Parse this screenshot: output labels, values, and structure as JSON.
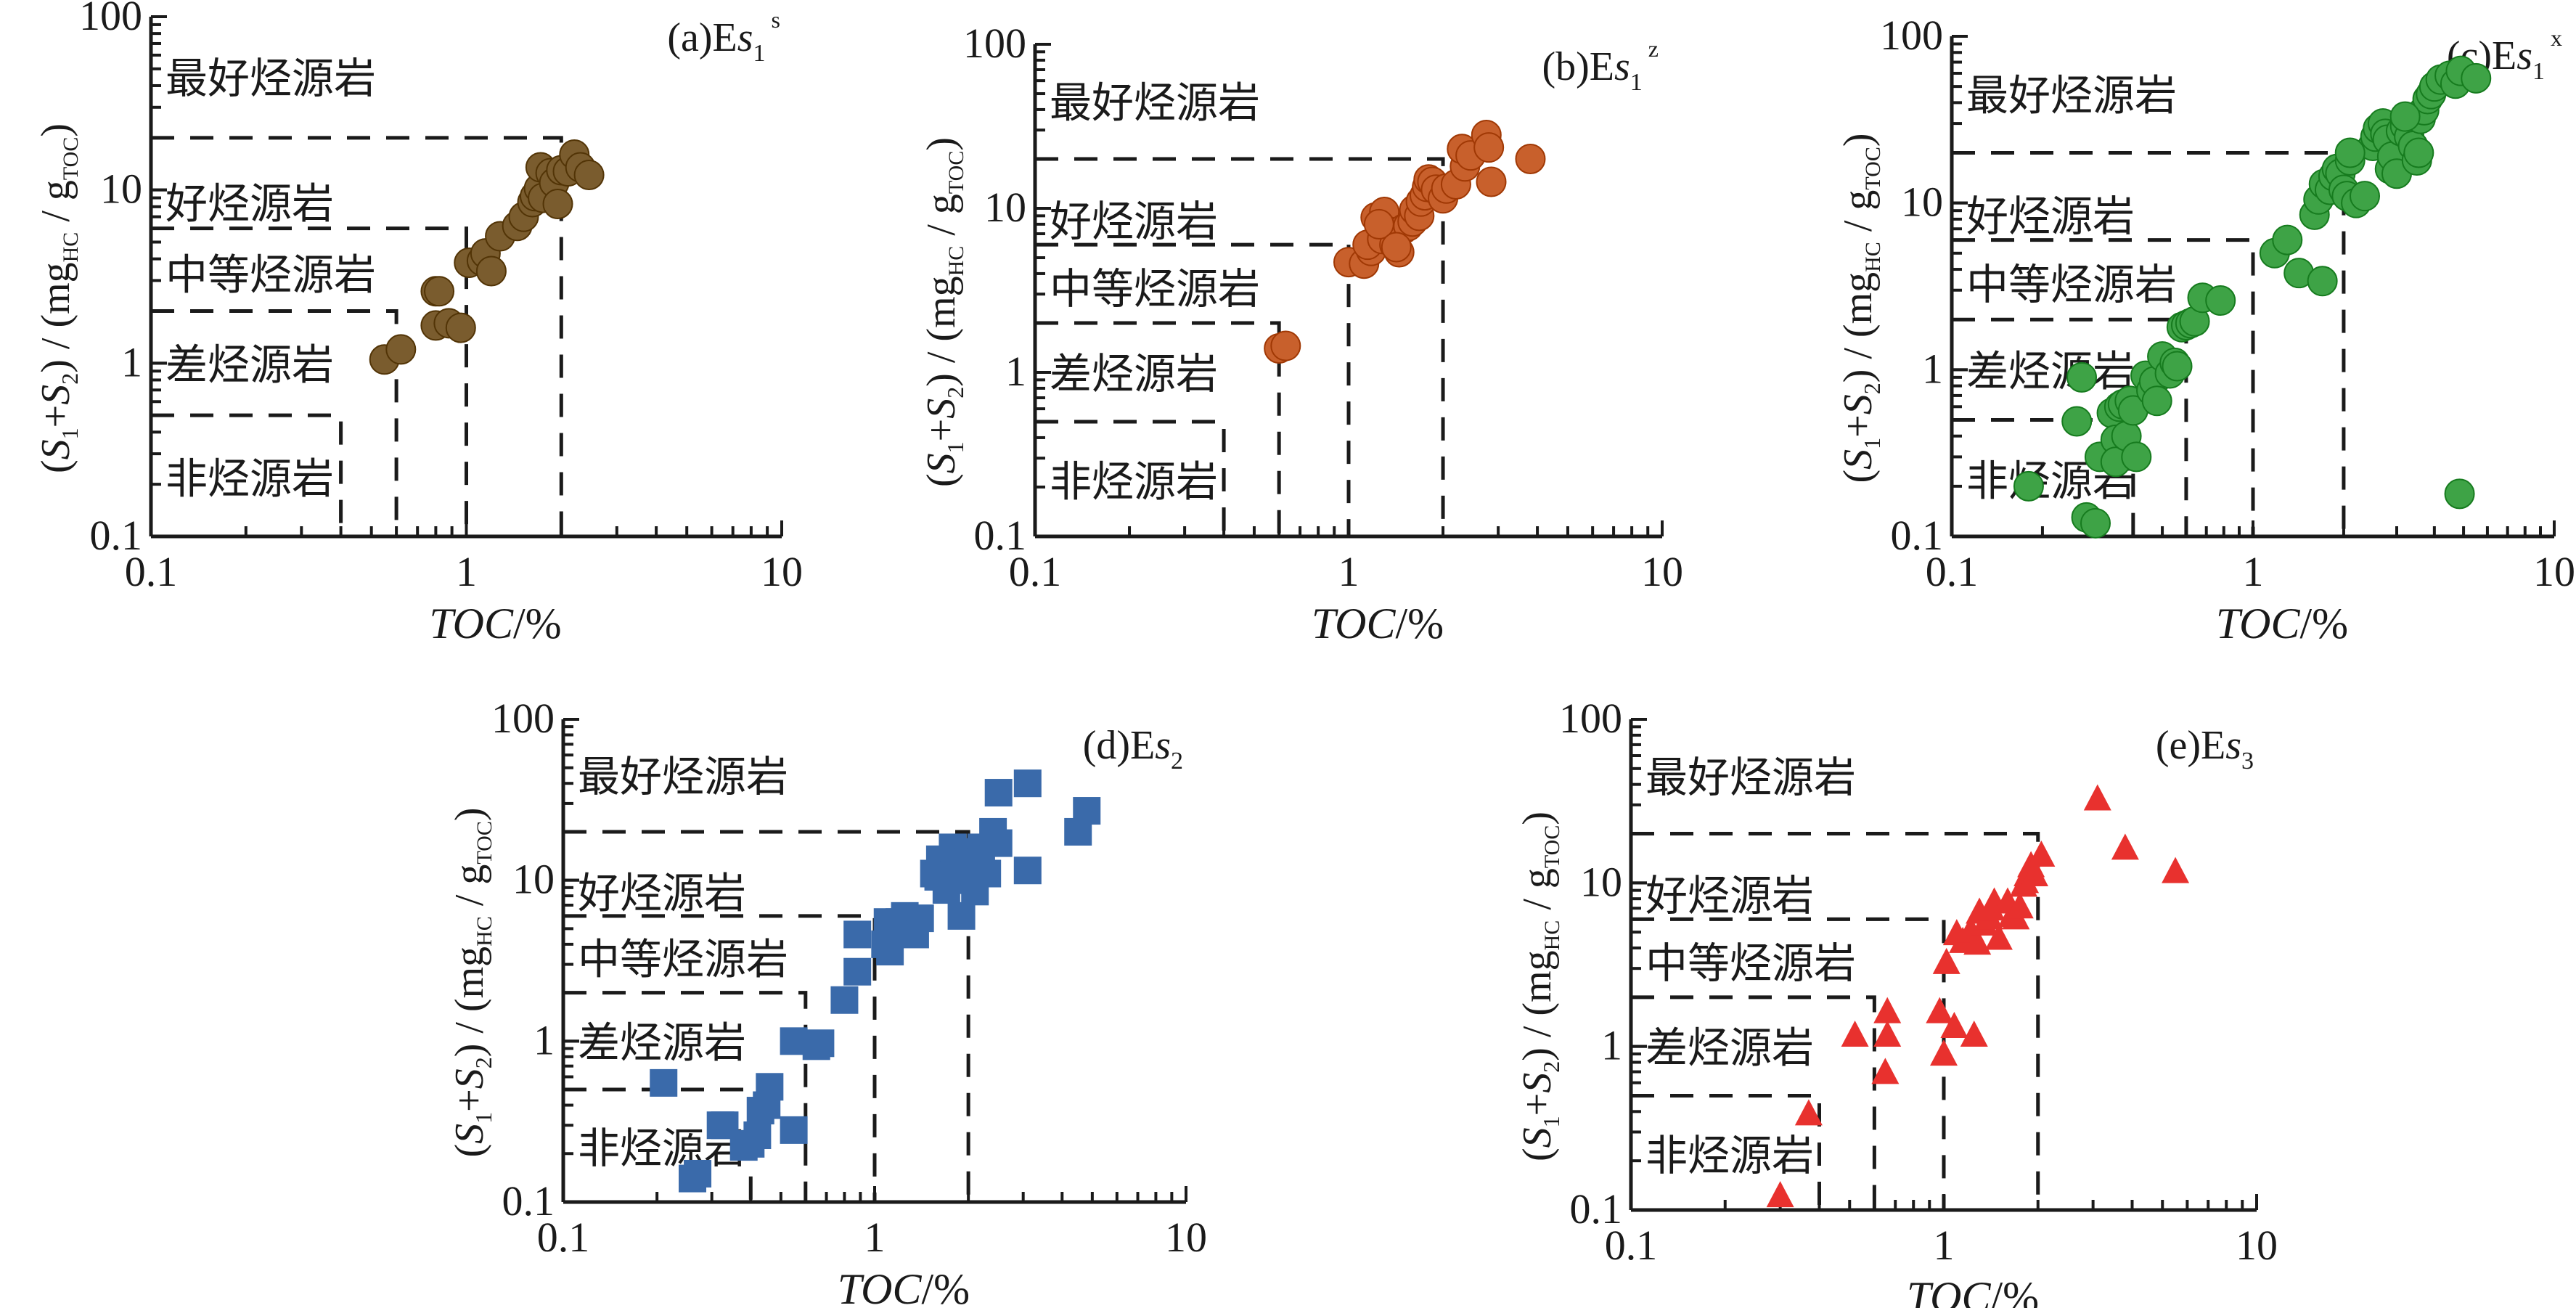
{
  "chart_data": [
    {
      "id": "a",
      "type": "scatter",
      "title": "(a)Es1s",
      "title_parts": {
        "prefix": "(a)E",
        "italic": "s",
        "sub": "1",
        "sup": "s"
      },
      "xlabel": "TOC/%",
      "ylabel": "(S1+S2)/(mgHC/gTOC)",
      "xscale": "log",
      "yscale": "log",
      "xlim": [
        0.1,
        10
      ],
      "ylim": [
        0.1,
        100
      ],
      "xticks": [
        "0.1",
        "1",
        "10"
      ],
      "yticks": [
        "0.1",
        "1",
        "10",
        "100"
      ],
      "marker": "circle",
      "color": "#7a5c2e",
      "x": [
        0.55,
        0.62,
        0.8,
        0.82,
        0.8,
        0.88,
        0.96,
        1.02,
        1.12,
        1.15,
        1.2,
        1.28,
        1.45,
        1.52,
        1.62,
        1.65,
        1.7,
        1.75,
        1.72,
        1.85,
        1.9,
        1.95,
        2.0,
        2.1,
        2.2,
        2.3,
        2.45
      ],
      "y": [
        1.05,
        1.2,
        2.6,
        2.6,
        1.65,
        1.7,
        1.6,
        3.8,
        3.9,
        4.3,
        3.4,
        5.4,
        6.2,
        7.0,
        8.5,
        9.2,
        10.2,
        9.0,
        13.5,
        12.5,
        11.0,
        8.3,
        13.0,
        12.8,
        16.0,
        13.5,
        12.2
      ]
    },
    {
      "id": "b",
      "type": "scatter",
      "title": "(b)Es1z",
      "title_parts": {
        "prefix": "(b)E",
        "italic": "s",
        "sub": "1",
        "sup": "z"
      },
      "xlabel": "TOC/%",
      "ylabel": "(S1+S2)/(mgHC/gTOC)",
      "xscale": "log",
      "yscale": "log",
      "xlim": [
        0.1,
        10
      ],
      "ylim": [
        0.1,
        100
      ],
      "xticks": [
        "0.1",
        "1",
        "10"
      ],
      "yticks": [
        "0.1",
        "1",
        "10",
        "100"
      ],
      "marker": "circle",
      "color": "#c8602c",
      "x": [
        0.6,
        0.63,
        1.0,
        1.12,
        1.18,
        1.15,
        1.22,
        1.3,
        1.35,
        1.28,
        1.4,
        1.45,
        1.5,
        1.55,
        1.6,
        1.62,
        1.68,
        1.7,
        1.75,
        1.78,
        1.8,
        1.85,
        1.9,
        2.0,
        2.05,
        2.2,
        2.35,
        2.3,
        2.45,
        2.75,
        2.8,
        2.85,
        3.8,
        1.25,
        1.42
      ],
      "y": [
        1.4,
        1.45,
        4.7,
        4.6,
        5.5,
        6.0,
        8.8,
        9.5,
        7.2,
        6.5,
        6.0,
        5.4,
        7.5,
        7.8,
        8.3,
        9.8,
        9.0,
        11.0,
        12.0,
        13.5,
        15.0,
        14.5,
        13.0,
        11.5,
        13.2,
        14.0,
        18.0,
        23.0,
        21.0,
        28.0,
        23.5,
        14.5,
        20.0,
        8.0,
        5.8
      ]
    },
    {
      "id": "c",
      "type": "scatter",
      "title": "(c)Es1x",
      "title_parts": {
        "prefix": "(c)E",
        "italic": "s",
        "sub": "1",
        "sup": "x"
      },
      "xlabel": "TOC/%",
      "ylabel": "(S1+S2)/(mgHC/gTOC)",
      "xscale": "log",
      "yscale": "log",
      "xlim": [
        0.1,
        10
      ],
      "ylim": [
        0.1,
        100
      ],
      "xticks": [
        "0.1",
        "1",
        "10"
      ],
      "yticks": [
        "0.1",
        "1",
        "10",
        "100"
      ],
      "marker": "circle",
      "color": "#3ea346",
      "x": [
        0.18,
        0.26,
        0.28,
        0.27,
        0.3,
        0.31,
        0.34,
        0.35,
        0.35,
        0.36,
        0.38,
        0.37,
        0.39,
        0.4,
        0.41,
        0.44,
        0.46,
        0.47,
        0.48,
        0.5,
        0.53,
        0.55,
        0.56,
        0.58,
        0.6,
        0.62,
        0.64,
        0.68,
        0.78,
        1.18,
        1.3,
        1.42,
        1.7,
        1.6,
        1.65,
        1.72,
        1.8,
        1.85,
        1.9,
        1.95,
        2.0,
        2.05,
        2.1,
        2.2,
        2.35,
        2.5,
        2.55,
        2.6,
        2.7,
        2.75,
        2.8,
        2.85,
        2.9,
        3.0,
        3.1,
        3.2,
        3.3,
        3.4,
        3.5,
        3.55,
        3.6,
        3.7,
        3.8,
        3.9,
        4.0,
        4.2,
        4.5,
        4.7,
        4.9,
        5.5,
        4.85,
        2.1,
        3.2
      ],
      "y": [
        0.2,
        0.49,
        0.13,
        0.9,
        0.12,
        0.3,
        0.55,
        0.38,
        0.28,
        0.6,
        0.4,
        0.62,
        0.65,
        0.57,
        0.3,
        0.92,
        0.75,
        0.85,
        0.65,
        1.2,
        0.95,
        1.1,
        1.05,
        1.8,
        1.85,
        1.9,
        1.95,
        2.7,
        2.6,
        5.0,
        6.0,
        3.8,
        3.4,
        8.5,
        10.5,
        13.0,
        12.0,
        14.5,
        16.0,
        15.0,
        12.0,
        11.0,
        18.0,
        10.0,
        11.0,
        22.0,
        25.0,
        28.0,
        30.0,
        26.0,
        24.0,
        16.0,
        19.0,
        15.0,
        27.0,
        29.0,
        25.0,
        22.0,
        18.0,
        20.0,
        32.0,
        36.0,
        42.0,
        45.0,
        50.0,
        55.0,
        58.0,
        52.0,
        62.0,
        56.0,
        0.18,
        20.0,
        33.0
      ]
    },
    {
      "id": "d",
      "type": "scatter",
      "title": "(d)Es2",
      "title_parts": {
        "prefix": "(d)E",
        "italic": "s",
        "sub": "2",
        "sup": ""
      },
      "xlabel": "TOC/%",
      "ylabel": "(S1+S2)/(mgHC/gTOC)",
      "xscale": "log",
      "yscale": "log",
      "xlim": [
        0.1,
        10
      ],
      "ylim": [
        0.1,
        100
      ],
      "xticks": [
        "0.1",
        "1",
        "10"
      ],
      "yticks": [
        "0.1",
        "1",
        "10",
        "100"
      ],
      "marker": "square",
      "color": "#3a6aaa",
      "x": [
        0.21,
        0.26,
        0.27,
        0.32,
        0.33,
        0.4,
        0.38,
        0.43,
        0.42,
        0.45,
        0.46,
        0.55,
        0.55,
        0.65,
        0.67,
        0.8,
        0.88,
        0.88,
        1.1,
        1.08,
        1.12,
        1.15,
        1.2,
        1.25,
        1.35,
        1.4,
        1.55,
        1.6,
        1.62,
        1.7,
        1.75,
        1.78,
        1.8,
        1.9,
        2.0,
        2.05,
        2.1,
        2.2,
        2.3,
        2.4,
        2.5,
        2.5,
        3.1,
        3.1,
        4.5,
        4.8
      ],
      "y": [
        0.55,
        0.14,
        0.15,
        0.3,
        0.3,
        0.23,
        0.22,
        0.37,
        0.26,
        0.4,
        0.52,
        1.0,
        0.28,
        0.93,
        0.97,
        1.8,
        2.7,
        4.6,
        5.5,
        4.0,
        3.6,
        5.0,
        5.5,
        6.0,
        4.6,
        5.8,
        11.0,
        10.5,
        13.5,
        8.7,
        12.0,
        16.0,
        15.0,
        6.0,
        13.0,
        10.0,
        8.5,
        16.0,
        11.0,
        20.0,
        17.0,
        35.0,
        40.0,
        11.5,
        20.0,
        27.0
      ]
    },
    {
      "id": "e",
      "type": "scatter",
      "title": "(e)Es3",
      "title_parts": {
        "prefix": "(e)E",
        "italic": "s",
        "sub": "3",
        "sup": ""
      },
      "xlabel": "TOC/%",
      "ylabel": "(S1+S2)/(mgHC/gTOC)",
      "xscale": "log",
      "yscale": "log",
      "xlim": [
        0.1,
        10
      ],
      "ylim": [
        0.1,
        100
      ],
      "xticks": [
        "0.1",
        "1",
        "10"
      ],
      "yticks": [
        "0.1",
        "1",
        "10",
        "100"
      ],
      "marker": "triangle",
      "color": "#e8312e",
      "x": [
        0.3,
        0.37,
        0.52,
        0.66,
        0.66,
        0.65,
        0.97,
        1.02,
        1.0,
        1.08,
        1.1,
        1.25,
        1.15,
        1.22,
        1.28,
        1.3,
        1.35,
        1.4,
        1.45,
        1.42,
        1.5,
        1.6,
        1.65,
        1.7,
        1.75,
        1.8,
        1.82,
        1.85,
        1.9,
        1.95,
        2.05,
        3.1,
        3.8,
        5.5
      ],
      "y": [
        0.12,
        0.38,
        1.15,
        1.6,
        1.15,
        0.68,
        1.6,
        3.2,
        0.88,
        1.3,
        4.8,
        1.15,
        4.3,
        5.0,
        4.2,
        6.5,
        5.5,
        6.0,
        7.5,
        6.8,
        4.5,
        7.5,
        6.2,
        6.0,
        7.0,
        9.5,
        10.0,
        11.0,
        12.5,
        11.0,
        14.5,
        32.0,
        16.0,
        11.5
      ]
    }
  ],
  "zones": {
    "labels": [
      "最好烃源岩",
      "好烃源岩",
      "中等烃源岩",
      "差烃源岩",
      "非烃源岩"
    ],
    "toc_bounds": [
      0.4,
      0.6,
      1,
      2
    ],
    "s_bounds": [
      0.5,
      2,
      6,
      20
    ]
  },
  "axis_text": {
    "x_italic": "TOC",
    "x_unit": "/%",
    "y_paren_open": "(",
    "y_S": "S",
    "y_sub1": "1",
    "y_plus": "+",
    "y_sub2": "2",
    "y_close_slash": ") / (mg",
    "y_HC": "HC",
    "y_slash_g": " / g",
    "y_TOC": "TOC",
    "y_close": ")"
  }
}
